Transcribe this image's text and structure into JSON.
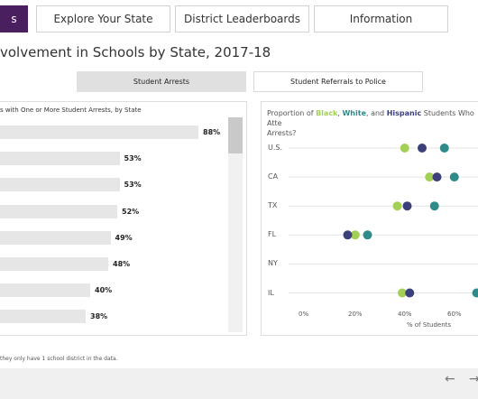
{
  "tabs": [
    {
      "label": "s",
      "active": true
    },
    {
      "label": "Explore Your State",
      "active": false
    },
    {
      "label": "District Leaderboards",
      "active": false
    },
    {
      "label": "Information",
      "active": false
    }
  ],
  "page_title": "volvement in Schools by State, 2017-18",
  "toggles": [
    {
      "label": "Student Arrests",
      "active": true
    },
    {
      "label": "Student Referrals to Police",
      "active": false
    }
  ],
  "bar_chart": {
    "subtitle": "s with One or More Student Arrests, by State",
    "chart_data": {
      "type": "bar",
      "values": [
        88,
        53,
        53,
        52,
        49,
        48,
        40,
        38
      ],
      "labels": [
        "88%",
        "53%",
        "53%",
        "52%",
        "49%",
        "48%",
        "40%",
        "38%"
      ]
    }
  },
  "dot_chart": {
    "title_parts": [
      "Proportion of ",
      "Black",
      ", ",
      "White",
      ", and ",
      "Hispanic",
      " Students Who Atte",
      "Arrests?"
    ],
    "colors": {
      "black": "#a3cf55",
      "white": "#2f8a8a",
      "hispanic": "#3b3f7a"
    },
    "chart_data": {
      "type": "scatter",
      "categories": [
        "U.S.",
        "CA",
        "TX",
        "FL",
        "NY",
        "IL"
      ],
      "x_ticks": [
        "0%",
        "20%",
        "40%",
        "60%"
      ],
      "xlabel": "% of Students",
      "series": [
        {
          "name": "Black",
          "values": [
            41,
            51,
            38,
            21,
            null,
            40
          ]
        },
        {
          "name": "White",
          "values": [
            57,
            61,
            53,
            26,
            null,
            70
          ]
        },
        {
          "name": "Hispanic",
          "values": [
            48,
            54,
            42,
            18,
            null,
            43
          ]
        }
      ]
    }
  },
  "footnote": "they only have 1 school district in the data.",
  "footer": {
    "back": "←",
    "forward": "→"
  }
}
